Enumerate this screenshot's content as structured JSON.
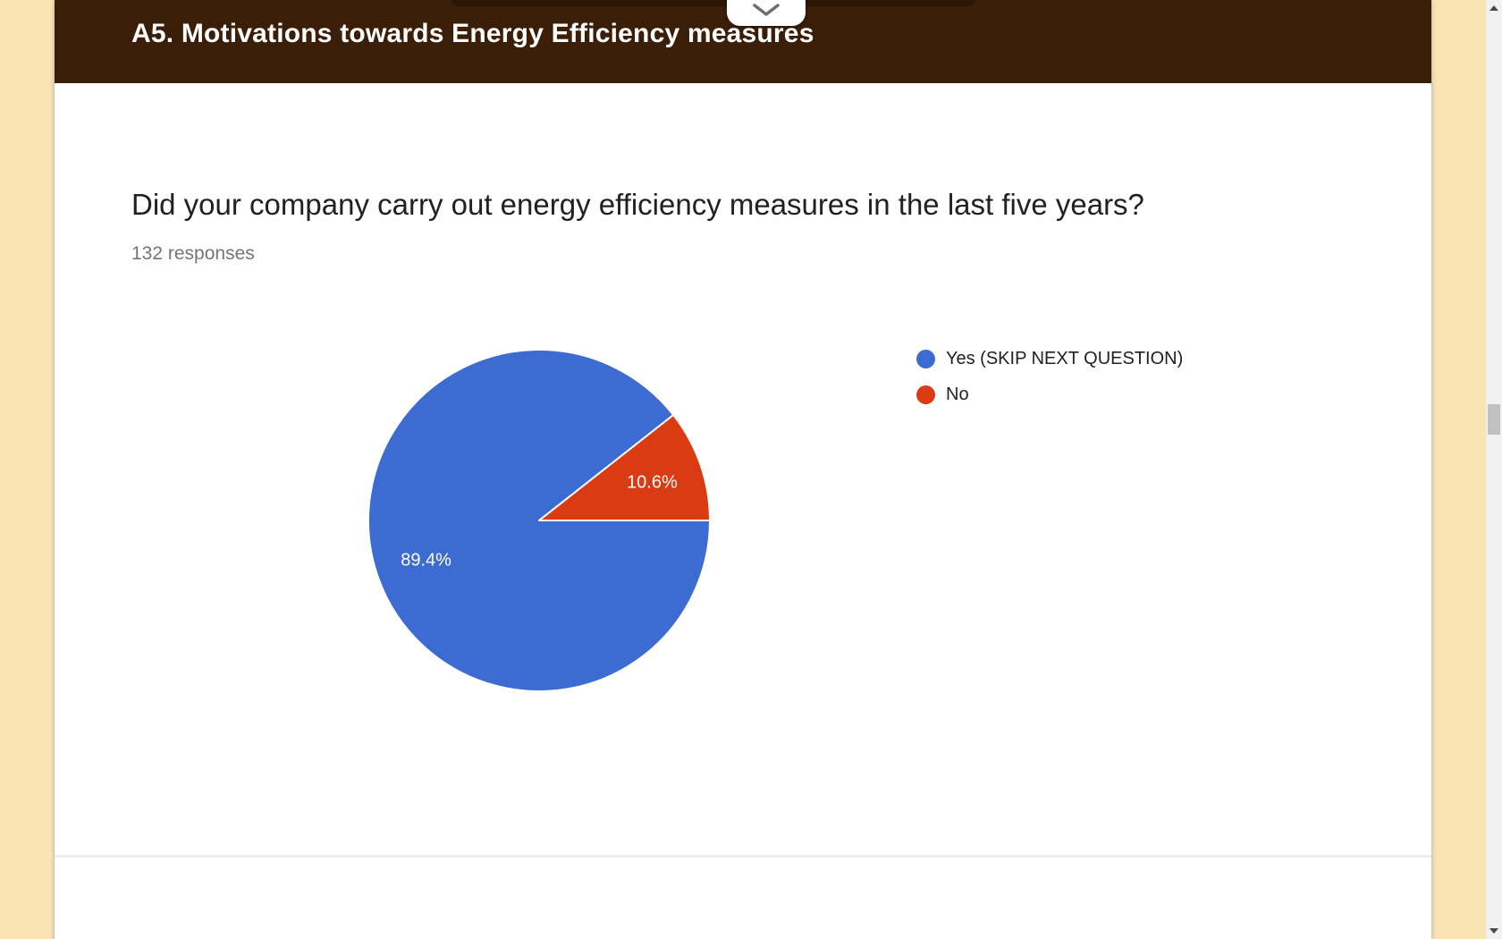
{
  "header": {
    "section_title": "A5. Motivations towards Energy Efficiency measures",
    "collapse_icon": "chevron-down-icon"
  },
  "question": {
    "title": "Did your company carry out energy efficiency measures in the last five years?",
    "responses_count": "132 responses"
  },
  "chart_data": {
    "type": "pie",
    "title": "Did your company carry out energy efficiency measures in the last five years?",
    "total_responses": 132,
    "slices": [
      {
        "label": "Yes (SKIP NEXT QUESTION)",
        "percent": 89.4,
        "display": "89.4%",
        "color": "#3C6BD1"
      },
      {
        "label": "No",
        "percent": 10.6,
        "display": "10.6%",
        "color": "#DA3B12"
      }
    ],
    "legend_position": "right",
    "start_angle_deg": 0,
    "direction": "clockwise",
    "slice_border_color": "#ffffff",
    "label_color": "#ffffff"
  },
  "colors": {
    "page_background": "#FAE3B5",
    "card_background": "#ffffff",
    "header_background": "#3B1E08",
    "header_text": "#ffffff",
    "question_text": "#212121",
    "muted_text": "#757575",
    "divider": "#ededed"
  },
  "icons": {
    "collapse": "chevron-down-icon",
    "scroll_up": "triangle-up-icon",
    "scroll_down": "triangle-down-icon"
  }
}
